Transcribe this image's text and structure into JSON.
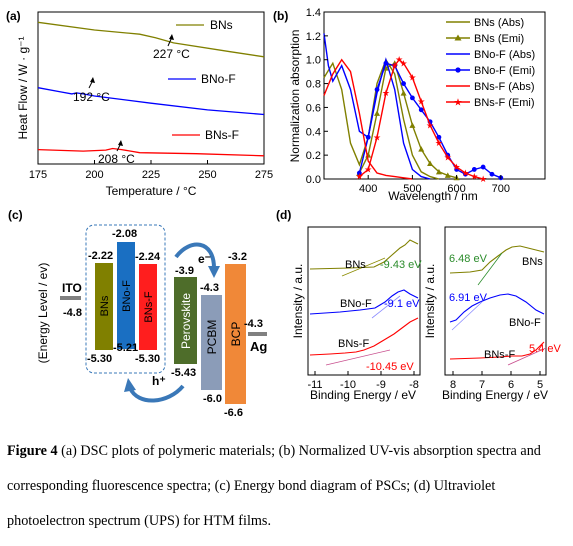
{
  "colors": {
    "bns": "#808000",
    "bnof": "#0000ff",
    "bnsf": "#ff0000",
    "ito": "#808080",
    "perov": "#4e6d2a",
    "pcbm": "#8b9cb8",
    "bcp": "#f08838",
    "ag": "#808080",
    "arrow": "#3a78b8"
  },
  "chart_data": [
    {
      "panel": "(a)",
      "type": "line",
      "xlabel": "Temperature / °C",
      "ylabel": "Heat Flow / W · g⁻¹",
      "xlim": [
        175,
        275
      ],
      "xticks": [
        "175",
        "200",
        "225",
        "250",
        "275"
      ],
      "series": [
        {
          "name": "BNs",
          "x": [
            175,
            200,
            220,
            227,
            235,
            260,
            275
          ],
          "y": [
            2.65,
            2.5,
            2.42,
            2.35,
            2.25,
            2.08,
            1.98
          ]
        },
        {
          "name": "BNo-F",
          "x": [
            175,
            185,
            190,
            192,
            195,
            200,
            225,
            250,
            275
          ],
          "y": [
            1.38,
            1.3,
            1.26,
            1.28,
            1.26,
            1.22,
            1.08,
            0.95,
            0.86
          ]
        },
        {
          "name": "BNs-F",
          "x": [
            175,
            195,
            205,
            208,
            212,
            220,
            245,
            275
          ],
          "y": [
            0.18,
            0.15,
            0.17,
            0.2,
            0.18,
            0.12,
            0.1,
            0.06
          ]
        }
      ],
      "annotations": [
        "227 °C",
        "192 °C",
        "208 °C"
      ]
    },
    {
      "panel": "(b)",
      "type": "line",
      "xlabel": "Wavelength / nm",
      "ylabel": "Normalization absorption",
      "xlim": [
        300,
        800
      ],
      "ylim": [
        0,
        1.4
      ],
      "xticks": [
        "400",
        "500",
        "600",
        "700"
      ],
      "yticks": [
        "0.0",
        "0.2",
        "0.4",
        "0.6",
        "0.8",
        "1.0",
        "1.2",
        "1.4"
      ],
      "series": [
        {
          "name": "BNs (Abs)",
          "x": [
            300,
            320,
            340,
            360,
            380,
            400,
            420,
            440,
            460,
            480,
            500,
            520,
            540,
            560
          ],
          "y": [
            0.85,
            0.97,
            0.75,
            0.3,
            0.12,
            0.35,
            0.8,
            1.0,
            0.88,
            0.5,
            0.2,
            0.06,
            0.02,
            0.0
          ]
        },
        {
          "name": "BNs (Emi)",
          "x": [
            380,
            400,
            420,
            440,
            460,
            480,
            500,
            520,
            540,
            560,
            580,
            600
          ],
          "y": [
            0.05,
            0.2,
            0.55,
            0.93,
            0.97,
            0.72,
            0.45,
            0.25,
            0.13,
            0.06,
            0.03,
            0.01
          ]
        },
        {
          "name": "BNo-F (Abs)",
          "x": [
            300,
            310,
            320,
            340,
            360,
            380,
            400,
            420,
            440,
            460,
            480,
            500,
            520,
            540
          ],
          "y": [
            1.22,
            0.95,
            0.82,
            0.95,
            0.75,
            0.4,
            0.35,
            0.72,
            1.0,
            0.75,
            0.3,
            0.08,
            0.02,
            0.0
          ]
        },
        {
          "name": "BNo-F (Emi)",
          "x": [
            380,
            400,
            420,
            440,
            460,
            480,
            500,
            520,
            540,
            560,
            580,
            600,
            620,
            640,
            660,
            680,
            700
          ],
          "y": [
            0.05,
            0.35,
            0.75,
            0.97,
            0.95,
            0.8,
            0.68,
            0.58,
            0.48,
            0.35,
            0.2,
            0.08,
            0.04,
            0.08,
            0.1,
            0.04,
            0.01
          ]
        },
        {
          "name": "BNs-F (Abs)",
          "x": [
            300,
            320,
            340,
            360,
            380,
            400,
            420,
            440,
            460,
            480,
            500
          ],
          "y": [
            0.7,
            0.88,
            1.0,
            0.9,
            0.55,
            0.15,
            0.05,
            0.03,
            0.02,
            0.01,
            0.0
          ]
        },
        {
          "name": "BNs-F (Emi)",
          "x": [
            380,
            400,
            420,
            440,
            460,
            470,
            480,
            500,
            520,
            540,
            560,
            580,
            600,
            620,
            640,
            660
          ],
          "y": [
            0.02,
            0.08,
            0.35,
            0.72,
            0.95,
            1.0,
            0.97,
            0.85,
            0.65,
            0.45,
            0.3,
            0.18,
            0.1,
            0.05,
            0.02,
            0.0
          ]
        }
      ]
    },
    {
      "panel": "(c)",
      "type": "diagram",
      "ylabel": "(Energy Level / ev)",
      "levels": [
        {
          "name": "ITO",
          "top": "-4.8"
        },
        {
          "name": "BNs",
          "top": "-2.22",
          "bottom": "-5.30"
        },
        {
          "name": "BNo-F",
          "top": "-2.08",
          "bottom": "-5.21"
        },
        {
          "name": "BNs-F",
          "top": "-2.24",
          "bottom": "-5.30"
        },
        {
          "name": "Perovskite",
          "top": "-3.9",
          "bottom": "-5.43"
        },
        {
          "name": "PCBM",
          "top": "-4.3",
          "bottom": "-6.0"
        },
        {
          "name": "BCP",
          "top": "-3.2",
          "bottom": "-6.6"
        },
        {
          "name": "Ag",
          "top": "-4.3"
        }
      ],
      "carriers": {
        "electron": "e⁻",
        "hole": "h⁺"
      }
    },
    {
      "panel": "(d)",
      "type": "line",
      "xlabel_left": "Binding Energy / eV",
      "xlabel_right": "Binding Energy / eV",
      "ylabel_left": "Intensity / a.u.",
      "ylabel_right": "Intensity / a.u.",
      "xticks_left": [
        "-11",
        "-10",
        "-9",
        "-8"
      ],
      "xticks_right": [
        "8",
        "7",
        "6",
        "5"
      ],
      "left_series": [
        {
          "name": "BNs",
          "value": "-9.43 eV"
        },
        {
          "name": "BNo-F",
          "value": "-9.1 eV"
        },
        {
          "name": "BNs-F",
          "value": "-10.45 eV"
        }
      ],
      "right_series": [
        {
          "name": "BNs",
          "value": "6.48 eV"
        },
        {
          "name": "BNo-F",
          "value": "6.91 eV"
        },
        {
          "name": "BNs-F",
          "value": "5.4 eV"
        }
      ]
    }
  ],
  "panels": {
    "a": "(a)",
    "b": "(b)",
    "c": "(c)",
    "d": "(d)"
  },
  "caption": {
    "label": "Figure 4",
    "text": " (a) DSC plots of polymeric materials; (b) Normalized UV-vis absorption spectra and corresponding fluorescence spectra; (c) Energy bond diagram of PSCs; (d) Ultraviolet photoelectron spectrum (UPS) for HTM films."
  }
}
